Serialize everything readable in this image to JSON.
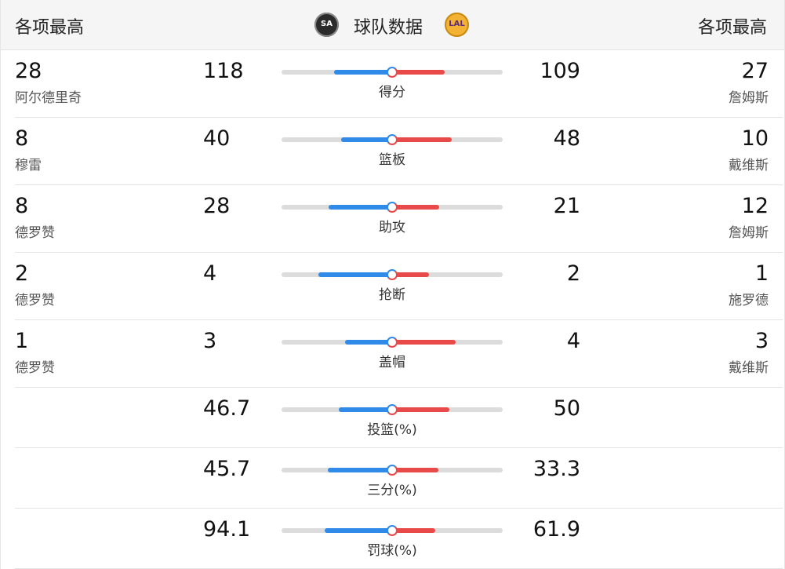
{
  "header": {
    "left_label": "各项最高",
    "right_label": "各项最高",
    "title": "球队数据",
    "home_logo_text": "SA",
    "away_logo_text": "LAL"
  },
  "colors": {
    "home_bar": "#2f8ae8",
    "away_bar": "#e84a4a",
    "track": "#dcdcdc"
  },
  "rows": [
    {
      "left_value": "28",
      "left_name": "阿尔德里奇",
      "home": "118",
      "label": "得分",
      "away": "109",
      "right_value": "27",
      "right_name": "詹姆斯"
    },
    {
      "left_value": "8",
      "left_name": "穆雷",
      "home": "40",
      "label": "篮板",
      "away": "48",
      "right_value": "10",
      "right_name": "戴维斯"
    },
    {
      "left_value": "8",
      "left_name": "德罗赞",
      "home": "28",
      "label": "助攻",
      "away": "21",
      "right_value": "12",
      "right_name": "詹姆斯"
    },
    {
      "left_value": "2",
      "left_name": "德罗赞",
      "home": "4",
      "label": "抢断",
      "away": "2",
      "right_value": "1",
      "right_name": "施罗德"
    },
    {
      "left_value": "1",
      "left_name": "德罗赞",
      "home": "3",
      "label": "盖帽",
      "away": "4",
      "right_value": "3",
      "right_name": "戴维斯"
    },
    {
      "home": "46.7",
      "label": "投篮(%)",
      "away": "50"
    },
    {
      "home": "45.7",
      "label": "三分(%)",
      "away": "33.3"
    },
    {
      "home": "94.1",
      "label": "罚球(%)",
      "away": "61.9"
    }
  ]
}
